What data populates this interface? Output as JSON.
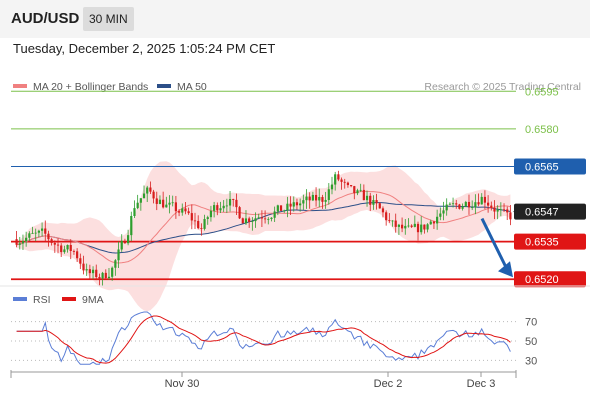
{
  "header": {
    "symbol": "AUD/USD",
    "timeframe": "30 MIN",
    "datetime": "Tuesday, December 2, 2025 1:05:24 PM CET"
  },
  "colors": {
    "bull": "#2e9e2e",
    "bear": "#d71d1d",
    "ma20": "#f08080",
    "band_fill": "#fbd9d9",
    "ma50": "#2c4f88",
    "green_level": "#7cc04a",
    "blue_level": "#1f5fae",
    "red_level": "#e01515",
    "current": "#222222",
    "rsi": "#5b7ed6",
    "rsi_ma": "#e01515",
    "arrow": "#1f5fae"
  },
  "chart_data": [
    {
      "type": "candlestick",
      "legend": [
        {
          "name": "MA 20 + Bollinger Bands",
          "color": "#f08080"
        },
        {
          "name": "MA 50",
          "color": "#2c4f88"
        }
      ],
      "watermark": "Research © 2025 Trading Central",
      "legend_placement": "top-left",
      "ylim": [
        0.65165,
        0.66015
      ],
      "levels": [
        {
          "value": 0.6595,
          "label": "0.6595",
          "kind": "target"
        },
        {
          "value": 0.658,
          "label": "0.6580",
          "kind": "target"
        },
        {
          "value": 0.6565,
          "label": "0.6565",
          "kind": "pivot"
        },
        {
          "value": 0.6535,
          "label": "0.6535",
          "kind": "support"
        },
        {
          "value": 0.652,
          "label": "0.6520",
          "kind": "support"
        }
      ],
      "current_price": {
        "value": 0.6547,
        "label": "0.6547"
      },
      "x_ticks": [
        "Nov 30",
        "Dec 2",
        "Dec 3"
      ],
      "forecast": {
        "from": 0.6545,
        "to": 0.652,
        "direction": "down"
      }
    },
    {
      "type": "line",
      "legend": [
        {
          "name": "RSI",
          "color": "#5b7ed6"
        },
        {
          "name": "9MA",
          "color": "#e01515"
        }
      ],
      "ylim": [
        20,
        80
      ],
      "y_ticks": [
        70,
        50,
        30
      ]
    }
  ]
}
